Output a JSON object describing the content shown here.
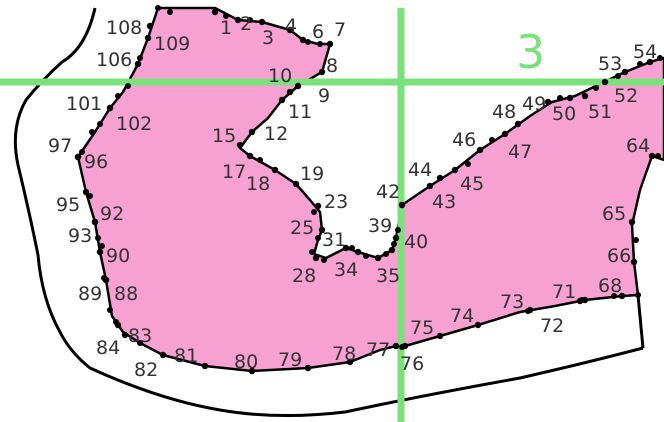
{
  "colors": {
    "region_fill": "#f7a1d3",
    "outline": "#000000",
    "grid_line": "#7be27b",
    "point": "#000000",
    "text": "#333333"
  },
  "region_number": "3",
  "points": [
    {
      "id": "1",
      "label": "1"
    },
    {
      "id": "2",
      "label": "2"
    },
    {
      "id": "3",
      "label": "3"
    },
    {
      "id": "4",
      "label": "4"
    },
    {
      "id": "6",
      "label": "6"
    },
    {
      "id": "7",
      "label": "7"
    },
    {
      "id": "8",
      "label": "8"
    },
    {
      "id": "9",
      "label": "9"
    },
    {
      "id": "10",
      "label": "10"
    },
    {
      "id": "11",
      "label": "11"
    },
    {
      "id": "12",
      "label": "12"
    },
    {
      "id": "15",
      "label": "15"
    },
    {
      "id": "17",
      "label": "17"
    },
    {
      "id": "18",
      "label": "18"
    },
    {
      "id": "19",
      "label": "19"
    },
    {
      "id": "23",
      "label": "23"
    },
    {
      "id": "25",
      "label": "25"
    },
    {
      "id": "28",
      "label": "28"
    },
    {
      "id": "31",
      "label": "31"
    },
    {
      "id": "34",
      "label": "34"
    },
    {
      "id": "35",
      "label": "35"
    },
    {
      "id": "39",
      "label": "39"
    },
    {
      "id": "40",
      "label": "40"
    },
    {
      "id": "42",
      "label": "42"
    },
    {
      "id": "43",
      "label": "43"
    },
    {
      "id": "44",
      "label": "44"
    },
    {
      "id": "45",
      "label": "45"
    },
    {
      "id": "46",
      "label": "46"
    },
    {
      "id": "47",
      "label": "47"
    },
    {
      "id": "48",
      "label": "48"
    },
    {
      "id": "49",
      "label": "49"
    },
    {
      "id": "50",
      "label": "50"
    },
    {
      "id": "51",
      "label": "51"
    },
    {
      "id": "52",
      "label": "52"
    },
    {
      "id": "53",
      "label": "53"
    },
    {
      "id": "54",
      "label": "54"
    },
    {
      "id": "64",
      "label": "64"
    },
    {
      "id": "65",
      "label": "65"
    },
    {
      "id": "66",
      "label": "66"
    },
    {
      "id": "68",
      "label": "68"
    },
    {
      "id": "71",
      "label": "71"
    },
    {
      "id": "72",
      "label": "72"
    },
    {
      "id": "73",
      "label": "73"
    },
    {
      "id": "74",
      "label": "74"
    },
    {
      "id": "75",
      "label": "75"
    },
    {
      "id": "76",
      "label": "76"
    },
    {
      "id": "77",
      "label": "77"
    },
    {
      "id": "78",
      "label": "78"
    },
    {
      "id": "79",
      "label": "79"
    },
    {
      "id": "80",
      "label": "80"
    },
    {
      "id": "81",
      "label": "81"
    },
    {
      "id": "82",
      "label": "82"
    },
    {
      "id": "83",
      "label": "83"
    },
    {
      "id": "84",
      "label": "84"
    },
    {
      "id": "88",
      "label": "88"
    },
    {
      "id": "89",
      "label": "89"
    },
    {
      "id": "90",
      "label": "90"
    },
    {
      "id": "92",
      "label": "92"
    },
    {
      "id": "93",
      "label": "93"
    },
    {
      "id": "95",
      "label": "95"
    },
    {
      "id": "96",
      "label": "96"
    },
    {
      "id": "97",
      "label": "97"
    },
    {
      "id": "101",
      "label": "101"
    },
    {
      "id": "102",
      "label": "102"
    },
    {
      "id": "106",
      "label": "106"
    },
    {
      "id": "108",
      "label": "108"
    },
    {
      "id": "109",
      "label": "109"
    }
  ]
}
